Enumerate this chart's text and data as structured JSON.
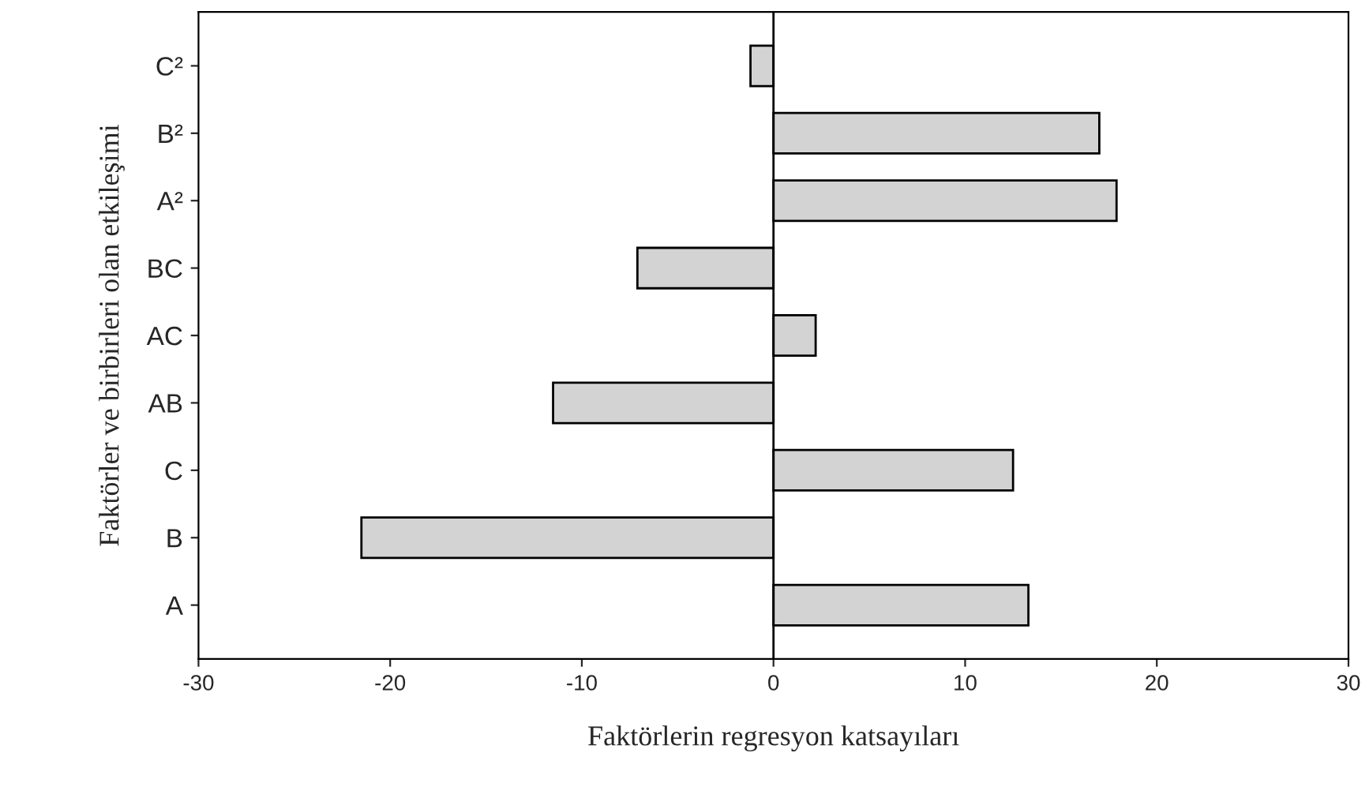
{
  "chart_data": {
    "type": "bar",
    "orientation": "horizontal",
    "xlabel": "Faktörlerin regresyon katsayıları",
    "ylabel": "Faktörler ve birbirleri olan etkileşimi",
    "categories": [
      "C²",
      "B²",
      "A²",
      "BC",
      "AC",
      "AB",
      "C",
      "B",
      "A"
    ],
    "values": [
      -1.2,
      17.0,
      17.9,
      -7.1,
      2.2,
      -11.5,
      12.5,
      -21.5,
      13.3
    ],
    "color": "#d3d3d3",
    "xlim": [
      -30,
      30
    ],
    "xticks": [
      -30,
      -20,
      -10,
      0,
      10,
      20,
      30
    ],
    "ref_lines": [
      {
        "axis": "x",
        "value": 0,
        "color": "#000000"
      }
    ],
    "grid": false,
    "legend": false
  }
}
